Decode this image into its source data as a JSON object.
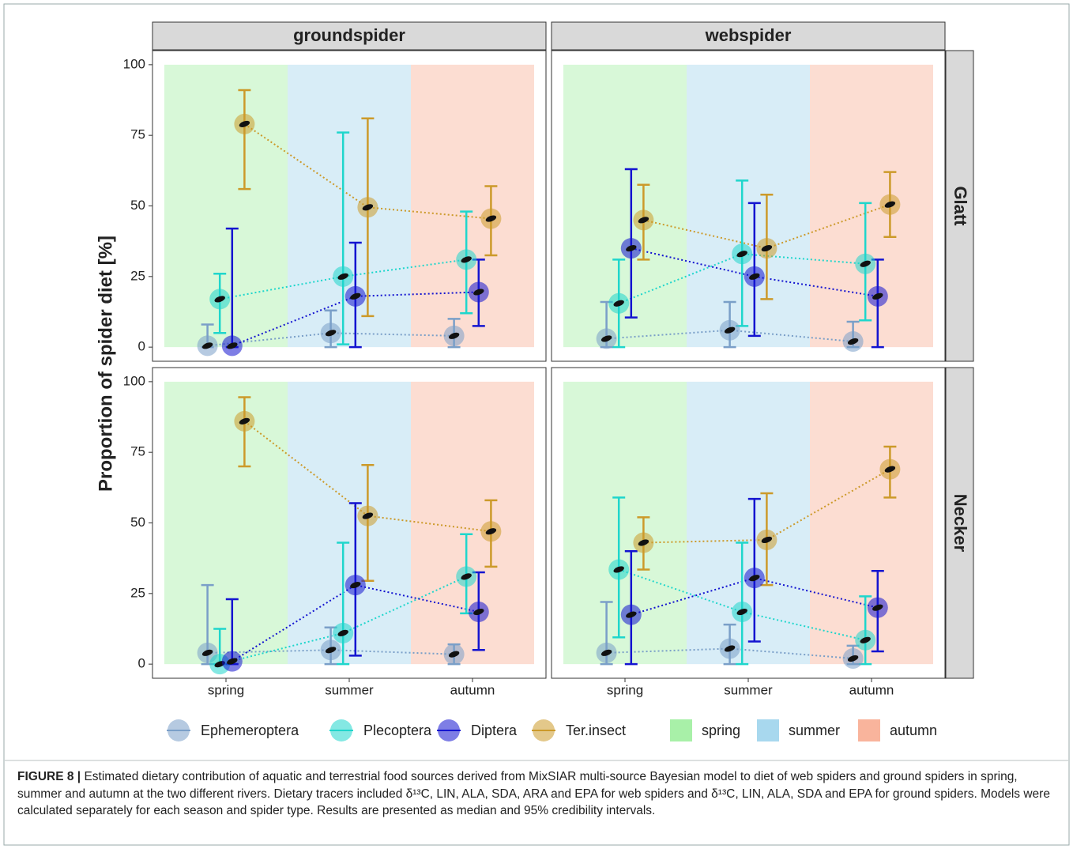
{
  "chart_data": {
    "type": "pointrange",
    "ylabel": "Proportion of spider diet [%]",
    "columns": [
      "groundspider",
      "webspider"
    ],
    "rows": [
      "Glatt",
      "Necker"
    ],
    "categories": [
      "spring",
      "summer",
      "autumn"
    ],
    "category_colors": [
      "#a8f0a8",
      "#a8d8ee",
      "#f9b49c"
    ],
    "ylim": [
      -5,
      105
    ],
    "yticks": [
      0,
      25,
      50,
      75,
      100
    ],
    "series": [
      {
        "name": "Ephemeroptera",
        "color": "#7a9fc8"
      },
      {
        "name": "Plecoptera",
        "color": "#1fd6cc"
      },
      {
        "name": "Diptera",
        "color": "#1414d0"
      },
      {
        "name": "Ter.insect",
        "color": "#cc9a2a"
      }
    ],
    "panels": [
      {
        "series": [
          {
            "values": [
              0.5,
              5,
              4
            ],
            "lower": [
              0,
              0,
              0
            ],
            "upper": [
              8,
              13,
              10
            ]
          },
          {
            "values": [
              17,
              25,
              31
            ],
            "lower": [
              5,
              1,
              12
            ],
            "upper": [
              26,
              76,
              48
            ]
          },
          {
            "values": [
              0.5,
              18,
              19.5
            ],
            "lower": [
              0,
              0,
              7.5
            ],
            "upper": [
              42,
              37,
              31
            ]
          },
          {
            "values": [
              79,
              49.5,
              45.5
            ],
            "lower": [
              56,
              11,
              32.5
            ],
            "upper": [
              91,
              81,
              57
            ]
          }
        ]
      },
      {
        "series": [
          {
            "values": [
              3,
              6,
              2
            ],
            "lower": [
              0,
              0,
              0
            ],
            "upper": [
              16,
              16,
              9
            ]
          },
          {
            "values": [
              15.5,
              33,
              29.5
            ],
            "lower": [
              0,
              7.5,
              9.5
            ],
            "upper": [
              31,
              59,
              51
            ]
          },
          {
            "values": [
              35,
              25,
              18
            ],
            "lower": [
              10.5,
              4,
              0
            ],
            "upper": [
              63,
              51,
              31
            ]
          },
          {
            "values": [
              45,
              35,
              50.5
            ],
            "lower": [
              31,
              17,
              39
            ],
            "upper": [
              57.5,
              54,
              62
            ]
          }
        ]
      },
      {
        "series": [
          {
            "values": [
              4,
              5,
              3.5
            ],
            "lower": [
              0,
              0,
              0
            ],
            "upper": [
              28,
              13,
              7
            ]
          },
          {
            "values": [
              0,
              11,
              31
            ],
            "lower": [
              0,
              0,
              18
            ],
            "upper": [
              12.5,
              43,
              46
            ]
          },
          {
            "values": [
              1,
              28,
              18.5
            ],
            "lower": [
              0,
              3,
              5
            ],
            "upper": [
              23,
              57,
              32.5
            ]
          },
          {
            "values": [
              86,
              52.5,
              47
            ],
            "lower": [
              70,
              29.5,
              34.5
            ],
            "upper": [
              94.5,
              70.5,
              58
            ]
          }
        ]
      },
      {
        "series": [
          {
            "values": [
              4,
              5.5,
              2
            ],
            "lower": [
              0,
              0,
              0
            ],
            "upper": [
              22,
              14,
              6.5
            ]
          },
          {
            "values": [
              33.5,
              18.5,
              8.5
            ],
            "lower": [
              9.5,
              0,
              0
            ],
            "upper": [
              59,
              43,
              24
            ]
          },
          {
            "values": [
              17.5,
              30.5,
              20
            ],
            "lower": [
              0,
              8,
              4.5
            ],
            "upper": [
              40,
              58.5,
              33
            ]
          },
          {
            "values": [
              43,
              44,
              69
            ],
            "lower": [
              33.5,
              28,
              59
            ],
            "upper": [
              52,
              60.5,
              77
            ]
          }
        ]
      }
    ]
  },
  "caption": {
    "label": "FIGURE 8 |",
    "text": "Estimated dietary contribution of aquatic and terrestrial food sources derived from MixSIAR multi-source Bayesian model to diet of web spiders and ground spiders in spring, summer and autumn at the two different rivers. Dietary tracers included δ¹³C, LIN, ALA, SDA, ARA and EPA for web spiders and δ¹³C, LIN, ALA, SDA and EPA for ground spiders. Models were calculated separately for each season and spider type. Results are presented as median and 95% credibility intervals."
  }
}
